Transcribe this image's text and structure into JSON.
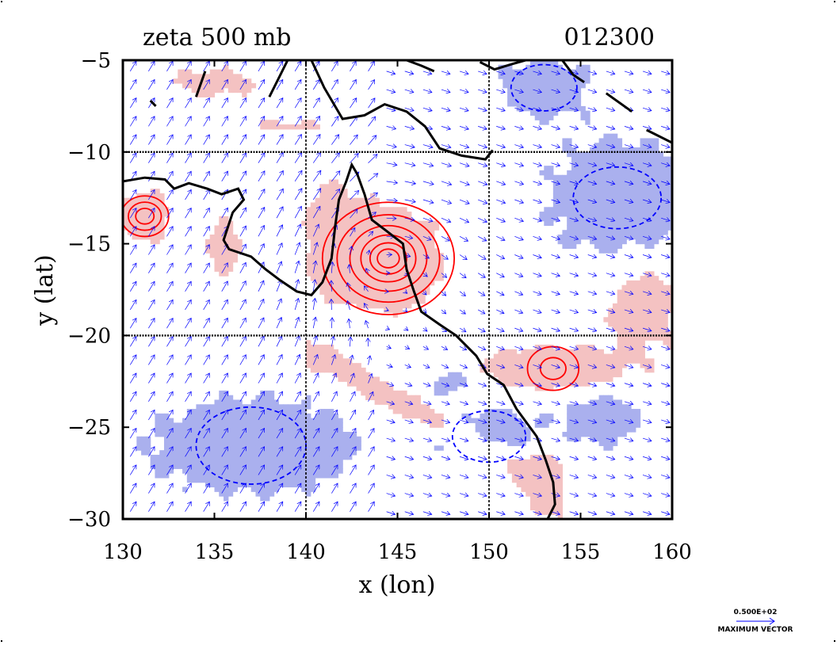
{
  "chart_data": {
    "type": "contour",
    "title": "zeta 500 mb",
    "time_label": "012300",
    "xlabel": "x (lon)",
    "ylabel": "y (lat)",
    "xlim": [
      130,
      160
    ],
    "ylim": [
      -30,
      -5
    ],
    "xticks": [
      "130",
      "135",
      "140",
      "145",
      "150",
      "155",
      "160"
    ],
    "yticks": [
      "−5",
      "−10",
      "−15",
      "−20",
      "−25",
      "−30"
    ],
    "grid_lon": [
      140,
      150
    ],
    "grid_lat": [
      -10,
      -20
    ],
    "series": [
      {
        "name": "",
        "color": "#ff0000",
        "fill": "#f4c2c2",
        "style": "solid"
      },
      {
        "name": "",
        "color": "#0000ff",
        "fill": "#aab0ee",
        "style": "dashed"
      }
    ],
    "vector_color": "#0000ff",
    "coast_color": "#000000",
    "coastline": [
      [
        [
          130.0,
          -11.6
        ],
        [
          131.2,
          -11.4
        ],
        [
          132.3,
          -11.5
        ],
        [
          132.8,
          -12.0
        ],
        [
          133.6,
          -11.7
        ],
        [
          134.6,
          -12.0
        ],
        [
          135.4,
          -12.3
        ],
        [
          136.3,
          -12.0
        ],
        [
          136.6,
          -12.6
        ],
        [
          136.0,
          -13.3
        ],
        [
          135.5,
          -14.8
        ],
        [
          135.8,
          -15.3
        ],
        [
          137.0,
          -15.7
        ],
        [
          137.8,
          -16.4
        ],
        [
          138.6,
          -17.0
        ],
        [
          139.5,
          -17.6
        ],
        [
          140.3,
          -17.8
        ],
        [
          140.9,
          -17.1
        ],
        [
          141.4,
          -15.8
        ],
        [
          141.6,
          -14.0
        ],
        [
          141.8,
          -12.6
        ],
        [
          142.2,
          -11.6
        ],
        [
          142.5,
          -10.7
        ],
        [
          142.8,
          -11.2
        ],
        [
          143.2,
          -12.3
        ],
        [
          143.6,
          -13.7
        ],
        [
          144.4,
          -14.3
        ],
        [
          145.3,
          -15.0
        ],
        [
          145.5,
          -16.4
        ],
        [
          145.9,
          -17.6
        ],
        [
          146.3,
          -18.7
        ],
        [
          147.3,
          -19.4
        ],
        [
          148.2,
          -20.0
        ],
        [
          149.3,
          -21.1
        ],
        [
          149.9,
          -22.1
        ],
        [
          150.8,
          -22.7
        ],
        [
          151.5,
          -24.0
        ],
        [
          152.6,
          -25.5
        ],
        [
          153.1,
          -26.8
        ],
        [
          153.5,
          -28.0
        ],
        [
          153.6,
          -29.2
        ],
        [
          153.2,
          -30.0
        ]
      ],
      [
        [
          138.0,
          -7.0
        ],
        [
          138.6,
          -5.8
        ],
        [
          139.0,
          -5.0
        ]
      ],
      [
        [
          140.3,
          -5.0
        ],
        [
          141.0,
          -6.5
        ],
        [
          142.0,
          -8.2
        ],
        [
          143.2,
          -8.0
        ],
        [
          144.3,
          -7.4
        ],
        [
          145.5,
          -7.8
        ],
        [
          146.5,
          -8.6
        ],
        [
          147.3,
          -9.8
        ],
        [
          148.5,
          -10.2
        ],
        [
          149.8,
          -10.4
        ],
        [
          150.2,
          -9.9
        ]
      ],
      [
        [
          145.5,
          -5.0
        ],
        [
          146.3,
          -5.3
        ],
        [
          147.0,
          -5.6
        ]
      ],
      [
        [
          149.5,
          -5.1
        ],
        [
          150.3,
          -5.5
        ],
        [
          151.3,
          -5.2
        ],
        [
          152.0,
          -5.0
        ]
      ],
      [
        [
          154.0,
          -5.0
        ],
        [
          154.6,
          -5.8
        ],
        [
          155.2,
          -6.2
        ]
      ],
      [
        [
          156.4,
          -6.8
        ],
        [
          157.8,
          -7.8
        ]
      ],
      [
        [
          158.6,
          -8.8
        ],
        [
          160.0,
          -9.5
        ]
      ],
      [
        [
          134.0,
          -7.0
        ],
        [
          134.5,
          -5.6
        ]
      ],
      [
        [
          131.8,
          -7.5
        ],
        [
          131.5,
          -7.2
        ]
      ]
    ]
  }
}
